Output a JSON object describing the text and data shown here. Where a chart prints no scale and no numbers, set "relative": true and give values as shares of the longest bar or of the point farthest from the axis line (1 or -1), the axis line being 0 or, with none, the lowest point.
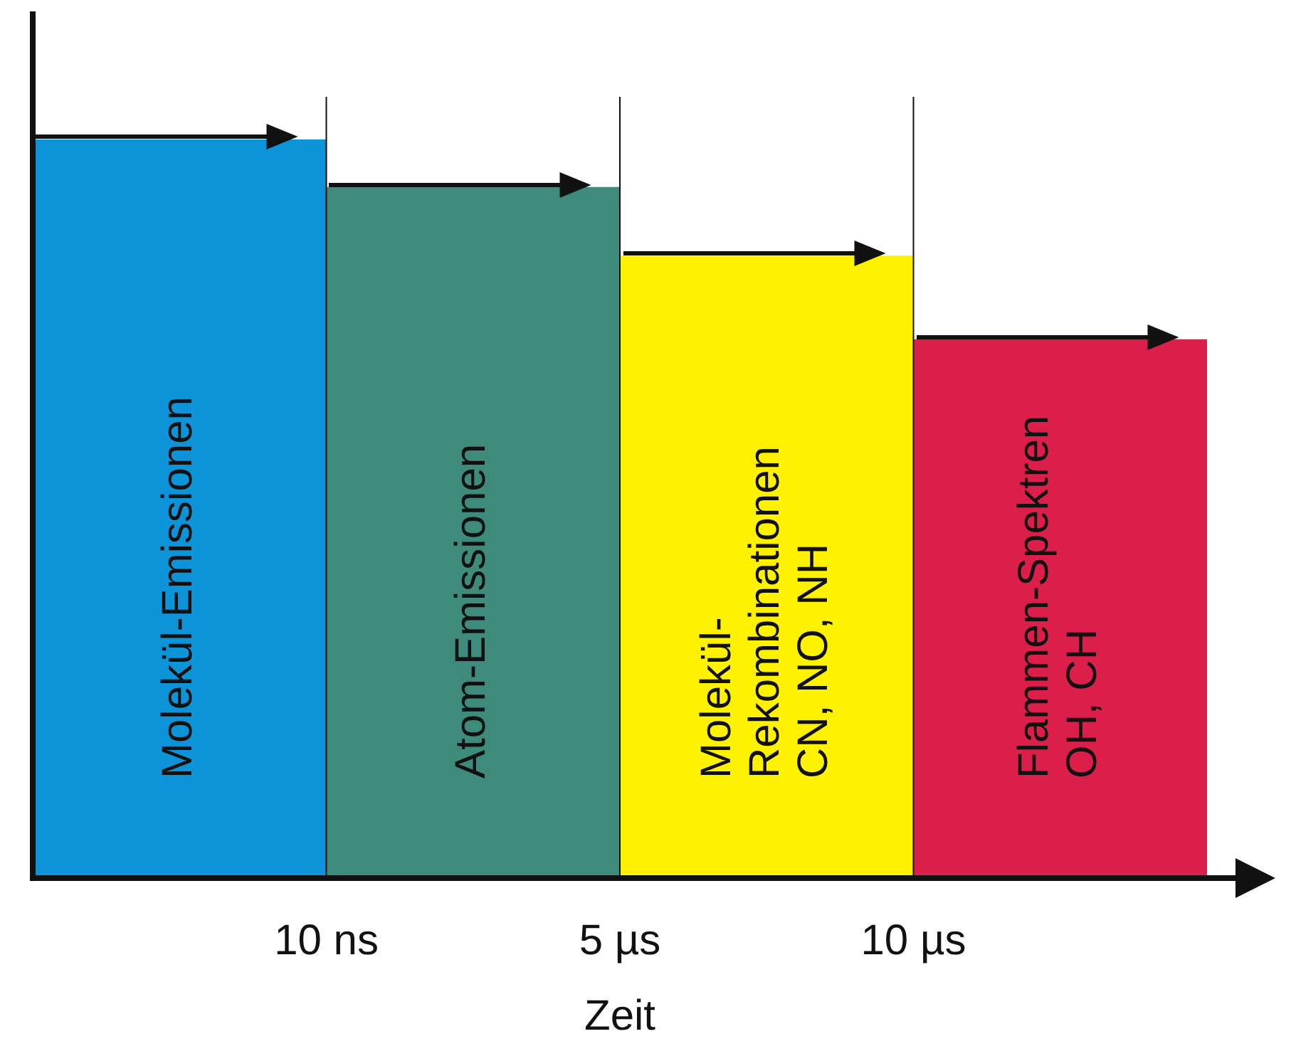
{
  "chart_data": {
    "type": "bar",
    "relative": true,
    "xlabel": "Zeit",
    "categories": [
      "Molekül-Emissionen",
      "Atom-Emissionen",
      "Molekül-\nRekombinationen\nCN, NO, NH",
      "Flammen-Spektren\nOH, CH"
    ],
    "values": [
      1,
      0.935,
      0.842,
      0.729
    ],
    "colors": [
      "#0d94d8",
      "#3e8b7b",
      "#fff200",
      "#dc1f4a"
    ],
    "annotations": [
      "10 ns",
      "5 µs",
      "10 µs"
    ],
    "grid": false,
    "legend": false
  }
}
